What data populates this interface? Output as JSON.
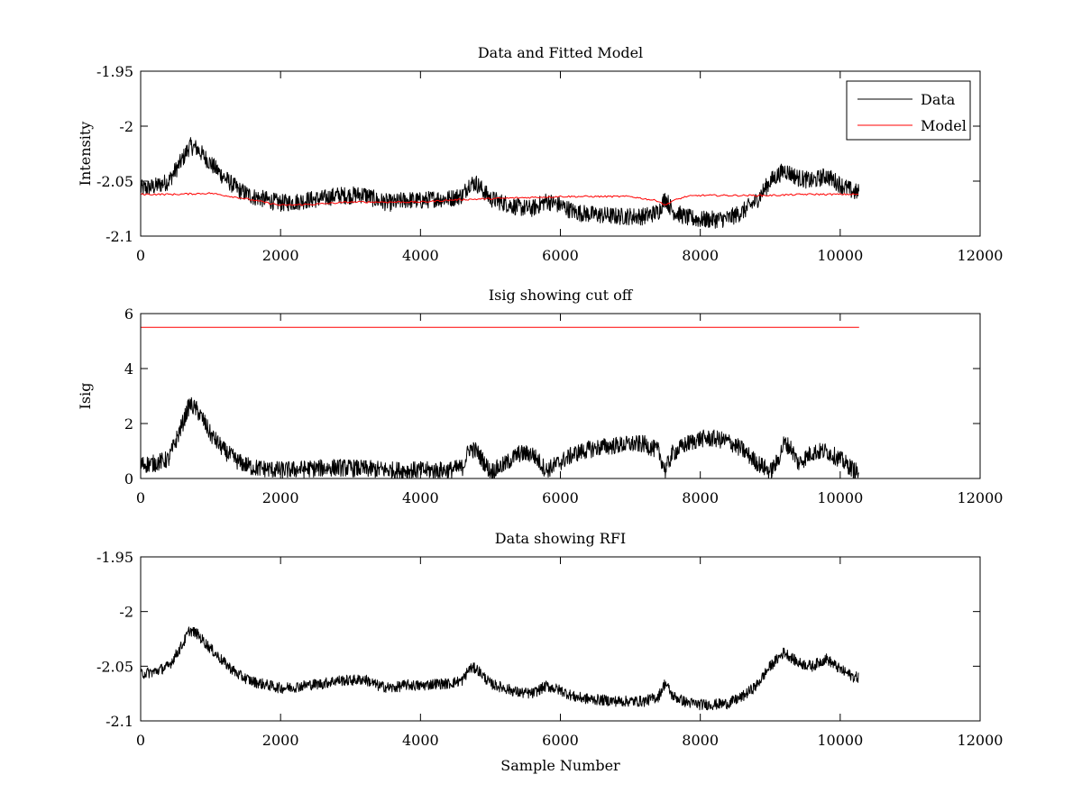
{
  "chart_data": [
    {
      "type": "line",
      "title": "Data and Fitted Model",
      "xlabel": "",
      "ylabel": "Intensity",
      "xlim": [
        0,
        12000
      ],
      "ylim": [
        -2.1,
        -1.95
      ],
      "xticks": [
        0,
        2000,
        4000,
        6000,
        8000,
        10000,
        12000
      ],
      "yticks": [
        -1.95,
        -2,
        -2.05,
        -2.1
      ],
      "xtick_labels": [
        "0",
        "2000",
        "4000",
        "6000",
        "8000",
        "10000",
        "12000"
      ],
      "ytick_labels": [
        "-1.95",
        "-2",
        "-2.05",
        "-2.1"
      ],
      "grid": false,
      "legend": "top-right",
      "noise": 0.008,
      "series": [
        {
          "name": "Data",
          "color": "#000000",
          "x": [
            0,
            200,
            400,
            600,
            700,
            800,
            900,
            1000,
            1200,
            1400,
            1600,
            1800,
            2000,
            2200,
            2400,
            2600,
            2800,
            3000,
            3200,
            3400,
            3600,
            3800,
            4000,
            4200,
            4400,
            4600,
            4700,
            4800,
            5000,
            5200,
            5400,
            5600,
            5800,
            6000,
            6200,
            6400,
            6600,
            6800,
            7000,
            7200,
            7400,
            7500,
            7600,
            7800,
            8000,
            8200,
            8400,
            8600,
            8800,
            9000,
            9200,
            9400,
            9600,
            9800,
            10000,
            10200,
            10270
          ],
          "y": [
            -2.057,
            -2.055,
            -2.05,
            -2.03,
            -2.018,
            -2.02,
            -2.027,
            -2.034,
            -2.047,
            -2.058,
            -2.064,
            -2.067,
            -2.07,
            -2.069,
            -2.067,
            -2.066,
            -2.063,
            -2.063,
            -2.062,
            -2.068,
            -2.07,
            -2.067,
            -2.068,
            -2.066,
            -2.066,
            -2.063,
            -2.052,
            -2.052,
            -2.066,
            -2.07,
            -2.074,
            -2.075,
            -2.068,
            -2.072,
            -2.078,
            -2.08,
            -2.081,
            -2.082,
            -2.082,
            -2.082,
            -2.078,
            -2.065,
            -2.077,
            -2.083,
            -2.085,
            -2.085,
            -2.084,
            -2.078,
            -2.068,
            -2.05,
            -2.04,
            -2.047,
            -2.05,
            -2.045,
            -2.053,
            -2.06,
            -2.06
          ]
        },
        {
          "name": "Model",
          "color": "#ff0000",
          "x": [
            0,
            500,
            1000,
            1500,
            2000,
            2500,
            3000,
            3500,
            4000,
            4500,
            5000,
            5500,
            6000,
            6500,
            7000,
            7200,
            7400,
            7500,
            7600,
            7800,
            8000,
            8500,
            9000,
            9500,
            10000,
            10270
          ],
          "y": [
            -2.062,
            -2.062,
            -2.061,
            -2.066,
            -2.072,
            -2.071,
            -2.069,
            -2.069,
            -2.069,
            -2.067,
            -2.066,
            -2.065,
            -2.064,
            -2.064,
            -2.064,
            -2.066,
            -2.068,
            -2.072,
            -2.068,
            -2.064,
            -2.063,
            -2.063,
            -2.063,
            -2.062,
            -2.062,
            -2.062
          ]
        }
      ]
    },
    {
      "type": "line",
      "title": "Isig showing cut off",
      "xlabel": "",
      "ylabel": "Isig",
      "xlim": [
        0,
        12000
      ],
      "ylim": [
        0,
        6
      ],
      "xticks": [
        0,
        2000,
        4000,
        6000,
        8000,
        10000,
        12000
      ],
      "yticks": [
        0,
        2,
        4,
        6
      ],
      "xtick_labels": [
        "0",
        "2000",
        "4000",
        "6000",
        "8000",
        "10000",
        "12000"
      ],
      "ytick_labels": [
        "0",
        "2",
        "4",
        "6"
      ],
      "grid": false,
      "legend": "none",
      "noise": 0.32,
      "series": [
        {
          "name": "",
          "color": "#000000",
          "x": [
            0,
            200,
            400,
            600,
            700,
            800,
            900,
            1000,
            1200,
            1400,
            1600,
            1800,
            2000,
            2400,
            2800,
            3200,
            3600,
            4000,
            4400,
            4600,
            4700,
            4800,
            5000,
            5200,
            5400,
            5600,
            5800,
            6000,
            6200,
            6400,
            6600,
            6800,
            7000,
            7200,
            7400,
            7500,
            7600,
            7800,
            8000,
            8200,
            8400,
            8600,
            8800,
            9000,
            9100,
            9200,
            9300,
            9400,
            9600,
            9800,
            10000,
            10200,
            10270
          ],
          "y": [
            0.5,
            0.55,
            0.7,
            2.0,
            2.7,
            2.5,
            2.1,
            1.6,
            1.0,
            0.6,
            0.4,
            0.35,
            0.3,
            0.35,
            0.4,
            0.35,
            0.3,
            0.3,
            0.3,
            0.4,
            1.1,
            1.0,
            0.25,
            0.5,
            0.9,
            0.9,
            0.3,
            0.6,
            0.9,
            1.05,
            1.15,
            1.2,
            1.25,
            1.25,
            1.0,
            0.3,
            0.9,
            1.25,
            1.45,
            1.45,
            1.35,
            1.05,
            0.6,
            0.25,
            0.6,
            1.3,
            1.1,
            0.55,
            0.95,
            1.0,
            0.7,
            0.3,
            0.2
          ]
        },
        {
          "name": "",
          "color": "#ff0000",
          "x": [
            0,
            10270
          ],
          "y": [
            5.5,
            5.5
          ]
        }
      ]
    },
    {
      "type": "line",
      "title": "Data showing RFI",
      "xlabel": "Sample Number",
      "ylabel": "",
      "xlim": [
        0,
        12000
      ],
      "ylim": [
        -2.1,
        -1.95
      ],
      "xticks": [
        0,
        2000,
        4000,
        6000,
        8000,
        10000,
        12000
      ],
      "yticks": [
        -1.95,
        -2,
        -2.05,
        -2.1
      ],
      "xtick_labels": [
        "0",
        "2000",
        "4000",
        "6000",
        "8000",
        "10000",
        "12000"
      ],
      "ytick_labels": [
        "-1.95",
        "-2",
        "-2.05",
        "-2.1"
      ],
      "grid": false,
      "legend": "none",
      "noise": 0.005,
      "series": [
        {
          "name": "",
          "color": "#000000",
          "x": [
            0,
            200,
            400,
            600,
            700,
            800,
            900,
            1000,
            1200,
            1400,
            1600,
            1800,
            2000,
            2200,
            2400,
            2600,
            2800,
            3000,
            3200,
            3400,
            3600,
            3800,
            4000,
            4200,
            4400,
            4600,
            4700,
            4800,
            5000,
            5200,
            5400,
            5600,
            5800,
            6000,
            6200,
            6400,
            6600,
            6800,
            7000,
            7200,
            7400,
            7500,
            7600,
            7800,
            8000,
            8200,
            8400,
            8600,
            8800,
            9000,
            9200,
            9400,
            9600,
            9800,
            10000,
            10200,
            10270
          ],
          "y": [
            -2.057,
            -2.055,
            -2.05,
            -2.03,
            -2.017,
            -2.02,
            -2.027,
            -2.034,
            -2.047,
            -2.058,
            -2.064,
            -2.067,
            -2.07,
            -2.069,
            -2.067,
            -2.066,
            -2.063,
            -2.063,
            -2.062,
            -2.068,
            -2.07,
            -2.067,
            -2.068,
            -2.066,
            -2.066,
            -2.063,
            -2.052,
            -2.052,
            -2.066,
            -2.07,
            -2.074,
            -2.075,
            -2.068,
            -2.072,
            -2.078,
            -2.08,
            -2.081,
            -2.082,
            -2.082,
            -2.082,
            -2.078,
            -2.065,
            -2.077,
            -2.083,
            -2.085,
            -2.085,
            -2.084,
            -2.078,
            -2.068,
            -2.05,
            -2.037,
            -2.047,
            -2.05,
            -2.043,
            -2.053,
            -2.06,
            -2.06
          ]
        }
      ]
    }
  ]
}
